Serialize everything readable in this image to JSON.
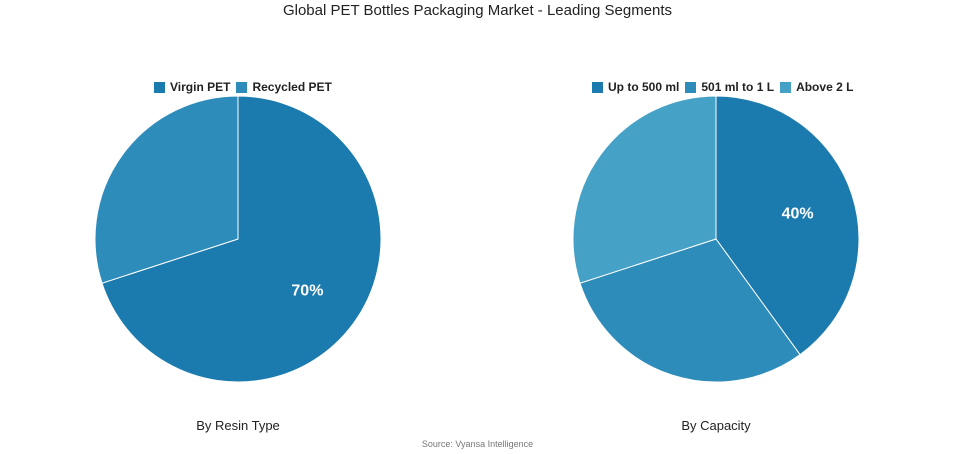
{
  "title": "Global PET Bottles Packaging Market - Leading Segments",
  "source": "Source: Vyansa Intelligence",
  "chart_data": [
    {
      "type": "pie",
      "subtitle": "By Resin Type",
      "legend_position": "top",
      "labels": [
        "Virgin PET",
        "Recycled PET"
      ],
      "values": [
        70,
        30
      ],
      "colors": [
        "#1b7aae",
        "#2e8cbb"
      ],
      "data_labels": [
        "70%",
        ""
      ]
    },
    {
      "type": "pie",
      "subtitle": "By Capacity",
      "legend_position": "top",
      "labels": [
        "Up to 500 ml",
        "501 ml to 1 L",
        "Above 2 L"
      ],
      "values": [
        40,
        30,
        30
      ],
      "colors": [
        "#1b7aae",
        "#2e8cbb",
        "#46a1c7"
      ],
      "data_labels": [
        "40%",
        "",
        ""
      ]
    }
  ]
}
